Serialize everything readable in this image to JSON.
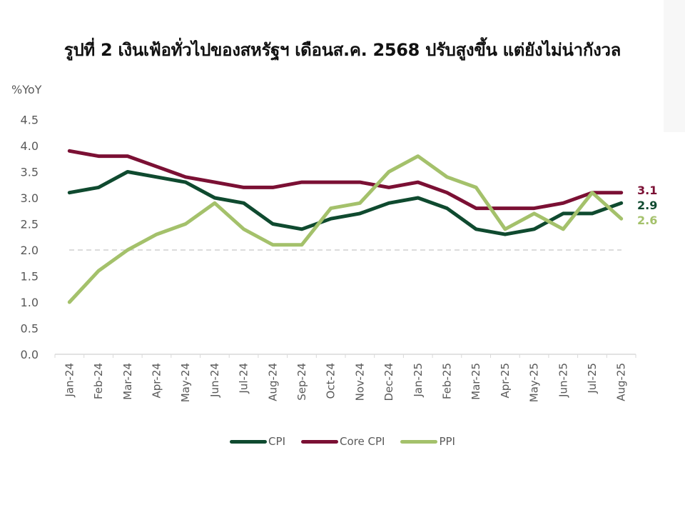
{
  "title": "รูปที่ 2 เงินเฟ้อทั่วไปของสหรัฐฯ เดือนส.ค. 2568 ปรับสูงขึ้น แต่ยังไม่น่ากังวล",
  "chart_data": {
    "type": "line",
    "title": "รูปที่ 2 เงินเฟ้อทั่วไปของสหรัฐฯ เดือนส.ค. 2568 ปรับสูงขึ้น แต่ยังไม่น่ากังวล",
    "xlabel": "",
    "ylabel": "%YoY",
    "ylim": [
      0,
      4.5
    ],
    "yticks": [
      "0.0",
      "0.5",
      "1.0",
      "1.5",
      "2.0",
      "2.5",
      "3.0",
      "3.5",
      "4.0",
      "4.5"
    ],
    "grid": false,
    "legend_position": "bottom",
    "categories": [
      "Jan-24",
      "Feb-24",
      "Mar-24",
      "Apr-24",
      "May-24",
      "Jun-24",
      "Jul-24",
      "Aug-24",
      "Sep-24",
      "Oct-24",
      "Nov-24",
      "Dec-24",
      "Jan-25",
      "Feb-25",
      "Mar-25",
      "Apr-25",
      "May-25",
      "Jun-25",
      "Jul-25",
      "Aug-25"
    ],
    "series": [
      {
        "name": "CPI",
        "color": "#0f4a2f",
        "values": [
          3.1,
          3.2,
          3.5,
          3.4,
          3.3,
          3.0,
          2.9,
          2.5,
          2.4,
          2.6,
          2.7,
          2.9,
          3.0,
          2.8,
          2.4,
          2.3,
          2.4,
          2.7,
          2.7,
          2.9
        ],
        "end_label": "2.9"
      },
      {
        "name": "Core CPI",
        "color": "#7b1034",
        "values": [
          3.9,
          3.8,
          3.8,
          3.6,
          3.4,
          3.3,
          3.2,
          3.2,
          3.3,
          3.3,
          3.3,
          3.2,
          3.3,
          3.1,
          2.8,
          2.8,
          2.8,
          2.9,
          3.1,
          3.1
        ],
        "end_label": "3.1"
      },
      {
        "name": "PPI",
        "color": "#a4c16b",
        "values": [
          1.0,
          1.6,
          2.0,
          2.3,
          2.5,
          2.9,
          2.4,
          2.1,
          2.1,
          2.8,
          2.9,
          3.5,
          3.8,
          3.4,
          3.2,
          2.4,
          2.7,
          2.4,
          3.1,
          2.6
        ],
        "end_label": "2.6"
      }
    ],
    "reference_line": {
      "value": 2.0,
      "style": "dashed",
      "color": "#cfcfcf"
    },
    "annotations": [
      "3.1",
      "2.9",
      "2.6"
    ]
  },
  "legend": [
    {
      "label": "CPI",
      "color": "#0f4a2f"
    },
    {
      "label": "Core CPI",
      "color": "#7b1034"
    },
    {
      "label": "PPI",
      "color": "#a4c16b"
    }
  ]
}
